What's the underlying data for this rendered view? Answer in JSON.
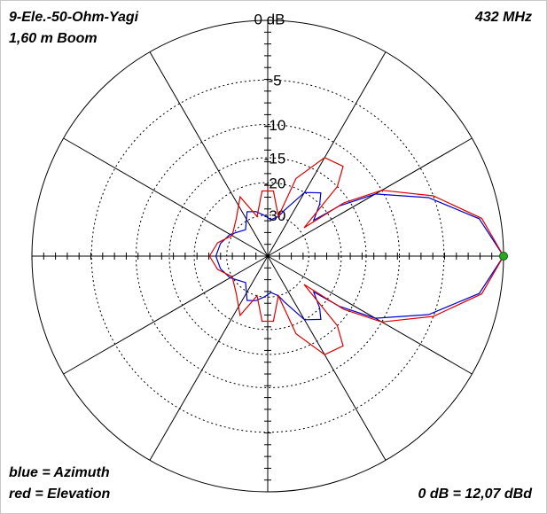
{
  "chart_data": {
    "type": "polar",
    "scale": "arrl-log",
    "title": "9-Ele.-50-Ohm-Yagi",
    "subtitle": "1,60 m Boom",
    "frequency": "432 MHz",
    "reference": "0 dB = 12,07 dBd",
    "rlim": [
      -40,
      0
    ],
    "rticks": [
      {
        "value": 0,
        "label": "0 dB"
      },
      -5,
      -10,
      -15,
      -20,
      -30
    ],
    "angle_spokes": [
      0,
      30,
      60,
      90,
      120,
      150,
      180,
      210,
      240,
      270,
      300,
      330
    ],
    "x": [
      0,
      10,
      20,
      30,
      35,
      38,
      45,
      50,
      60,
      70,
      75,
      85,
      95,
      105,
      115,
      130,
      150,
      165,
      180,
      195,
      210,
      230,
      245,
      255,
      265,
      275,
      285,
      290,
      300,
      310,
      315,
      322,
      325,
      330,
      340,
      350
    ],
    "series": [
      {
        "name": "blue = Azimuth",
        "color": "#0000cc",
        "values": [
          0,
          -1.6,
          -5.5,
          -11,
          -17,
          -24,
          -20,
          -18,
          -20,
          -27,
          -30,
          -32,
          -30,
          -28,
          -27,
          -33,
          -29,
          -27,
          -26,
          -27,
          -29,
          -33,
          -27,
          -28,
          -30,
          -32,
          -30,
          -27,
          -20,
          -18,
          -20,
          -24,
          -17,
          -11,
          -5.5,
          -1.6
        ]
      },
      {
        "name": "red = Elevation",
        "color": "#dd0000",
        "values": [
          0,
          -1.4,
          -5,
          -10,
          -16,
          -28,
          -15,
          -12,
          -12.5,
          -18,
          -30,
          -22,
          -22,
          -30,
          -22,
          -27,
          -30,
          -26,
          -24,
          -26,
          -30,
          -27,
          -22,
          -30,
          -22,
          -22,
          -30,
          -18,
          -12.5,
          -12,
          -15,
          -28,
          -16,
          -10,
          -5,
          -1.4
        ]
      }
    ]
  }
}
